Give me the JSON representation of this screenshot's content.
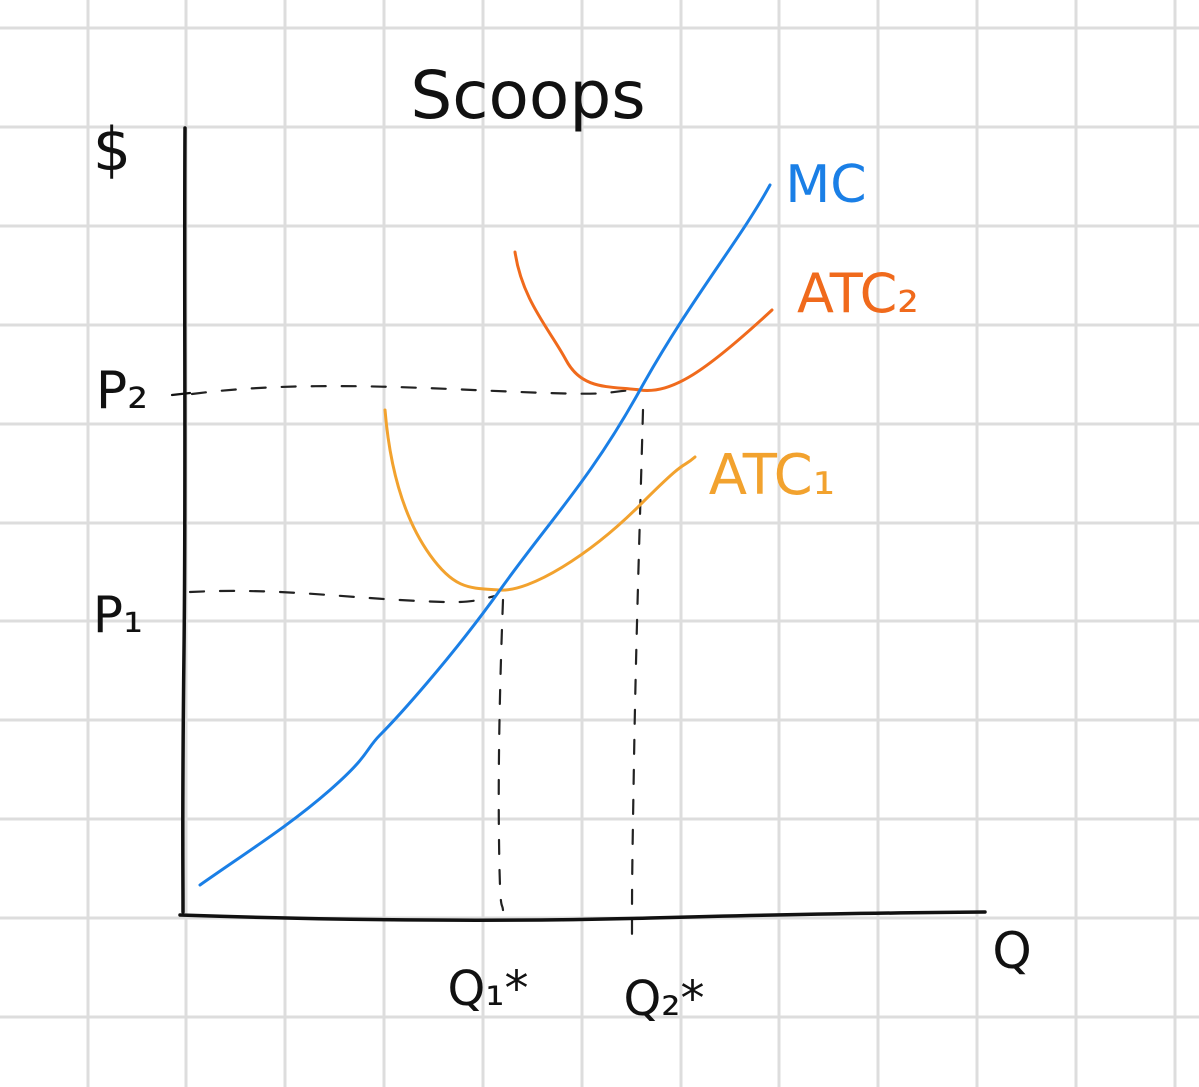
{
  "title": "Scoops",
  "y_axis_label": "$",
  "x_axis_label": "Q",
  "price_labels": {
    "p2": "P₂",
    "p1": "P₁"
  },
  "quantity_labels": {
    "q1": "Q₁*",
    "q2": "Q₂*"
  },
  "curves": {
    "mc": {
      "label": "MC",
      "color": "#1a7fe6"
    },
    "atc2": {
      "label": "ATC₂",
      "color": "#f06a1c"
    },
    "atc1": {
      "label": "ATC₁",
      "color": "#f2a22e"
    }
  },
  "colors": {
    "grid": "#dddddd",
    "axes": "#111111",
    "dashes": "#222222"
  }
}
